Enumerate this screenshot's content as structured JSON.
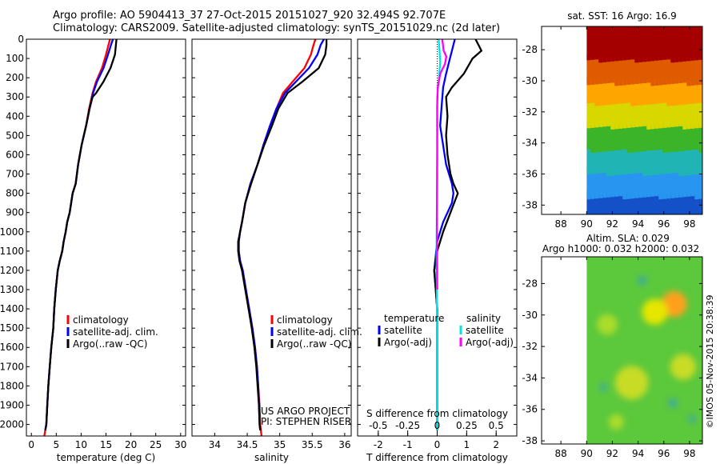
{
  "header": {
    "title_line1": "Argo profile: AO 5904413_37 27-Oct-2015 20151027_920 32.494S 92.707E",
    "title_line2": "Climatology: CARS2009. Satellite-adjusted climatology: synTS_20151029.nc (2d later)"
  },
  "side_label": "©IMOS 05-Nov-2015 20:38:39",
  "colors": {
    "climatology": "#ff0000",
    "satellite": "#0000ff",
    "argo": "#000000",
    "salinity_satellite": "#00e5e5",
    "salinity_argo": "#ff00ff"
  },
  "chart_data": [
    {
      "id": "temperature",
      "type": "line",
      "xlabel": "temperature (deg C)",
      "xlim": [
        -1,
        31
      ],
      "xticks": [
        0,
        5,
        10,
        15,
        20,
        25,
        30
      ],
      "ylim": [
        2060,
        0
      ],
      "yticks": [
        0,
        100,
        200,
        300,
        400,
        500,
        600,
        700,
        800,
        900,
        1000,
        1100,
        1200,
        1300,
        1400,
        1500,
        1600,
        1700,
        1800,
        1900,
        2000
      ],
      "legend": [
        "climatology",
        "satellite-adj. clim.",
        "Argo(..raw -QC)"
      ],
      "series": [
        {
          "name": "climatology",
          "color": "#ff0000",
          "x": [
            15.8,
            15.5,
            15.0,
            14.2,
            13.0,
            12.3,
            11.6,
            11.0,
            10.1,
            9.4,
            8.9,
            8.3,
            7.7,
            7.2,
            6.9,
            6.5,
            6.2,
            5.7,
            5.3,
            4.9,
            4.6,
            4.4,
            4.0,
            3.7,
            3.4,
            3.2,
            3.0,
            2.8,
            2.6
          ],
          "y": [
            0,
            30,
            80,
            150,
            220,
            280,
            360,
            450,
            550,
            650,
            750,
            800,
            900,
            950,
            1000,
            1050,
            1100,
            1150,
            1200,
            1300,
            1400,
            1500,
            1600,
            1700,
            1800,
            1900,
            2000,
            2030,
            2060
          ]
        },
        {
          "name": "satellite-adj. clim.",
          "color": "#0000ff",
          "x": [
            16.4,
            16.0,
            15.4,
            14.5,
            13.2,
            12.4,
            11.7,
            11.0,
            10.1,
            9.4,
            8.9,
            8.3,
            7.7,
            7.2,
            6.9,
            6.5,
            6.2,
            5.7,
            5.3,
            4.9,
            4.6,
            4.4,
            4.0,
            3.7,
            3.4,
            3.2,
            3.0,
            2.8
          ],
          "y": [
            0,
            30,
            80,
            150,
            220,
            280,
            360,
            450,
            550,
            650,
            750,
            800,
            900,
            950,
            1000,
            1050,
            1100,
            1150,
            1200,
            1300,
            1400,
            1500,
            1600,
            1700,
            1800,
            1900,
            2000,
            2030
          ]
        },
        {
          "name": "Argo(..raw -QC)",
          "color": "#000000",
          "x": [
            17.1,
            17.0,
            16.8,
            15.9,
            14.5,
            13.0,
            12.3,
            11.7,
            11.0,
            10.1,
            9.4,
            8.9,
            8.3,
            7.7,
            7.2,
            6.9,
            6.5,
            6.2,
            5.7,
            5.3,
            4.9,
            4.6,
            4.4,
            4.0,
            3.7,
            3.4,
            3.2,
            3.0,
            2.8
          ],
          "y": [
            0,
            30,
            80,
            150,
            220,
            280,
            300,
            360,
            450,
            550,
            650,
            750,
            800,
            900,
            950,
            1000,
            1050,
            1100,
            1150,
            1200,
            1300,
            1400,
            1500,
            1600,
            1700,
            1800,
            1900,
            2000,
            2030
          ]
        }
      ]
    },
    {
      "id": "salinity",
      "type": "line",
      "xlabel": "salinity",
      "xlim": [
        33.65,
        36.1
      ],
      "xticks": [
        34,
        34.5,
        35,
        35.5,
        36
      ],
      "ylim": [
        2060,
        0
      ],
      "legend": [
        "climatology",
        "satellite-adj. clim.",
        "Argo(..raw -QC)"
      ],
      "annotation_lines": [
        "US ARGO PROJECT",
        "PI: STEPHEN RISER"
      ],
      "series": [
        {
          "name": "climatology",
          "color": "#ff0000",
          "x": [
            35.55,
            35.52,
            35.48,
            35.38,
            35.2,
            35.05,
            34.95,
            34.85,
            34.75,
            34.66,
            34.55,
            34.47,
            34.42,
            34.39,
            34.37,
            34.37,
            34.39,
            34.43,
            34.48,
            34.53,
            34.58,
            34.62,
            34.65,
            34.67,
            34.69,
            34.7,
            34.71,
            34.72
          ],
          "y": [
            0,
            30,
            80,
            150,
            220,
            280,
            360,
            450,
            550,
            650,
            750,
            850,
            950,
            1000,
            1050,
            1100,
            1150,
            1200,
            1300,
            1400,
            1500,
            1600,
            1700,
            1800,
            1900,
            2000,
            2030,
            2060
          ]
        },
        {
          "name": "satellite-adj. clim.",
          "color": "#0000ff",
          "x": [
            35.68,
            35.63,
            35.58,
            35.45,
            35.25,
            35.08,
            34.95,
            34.85,
            34.75,
            34.66,
            34.55,
            34.47,
            34.42,
            34.39,
            34.37,
            34.37,
            34.39,
            34.43,
            34.48,
            34.53,
            34.58,
            34.62,
            34.65,
            34.67,
            34.68,
            34.69,
            34.7
          ],
          "y": [
            0,
            30,
            80,
            150,
            220,
            280,
            360,
            450,
            550,
            650,
            750,
            850,
            950,
            1000,
            1050,
            1100,
            1150,
            1200,
            1300,
            1400,
            1500,
            1600,
            1700,
            1800,
            1900,
            2000,
            2030
          ]
        },
        {
          "name": "Argo(..raw -QC)",
          "color": "#000000",
          "x": [
            35.72,
            35.72,
            35.7,
            35.6,
            35.35,
            35.12,
            34.98,
            34.88,
            34.76,
            34.66,
            34.56,
            34.47,
            34.42,
            34.39,
            34.36,
            34.36,
            34.38,
            34.42,
            34.47,
            34.52,
            34.57,
            34.61,
            34.64,
            34.66,
            34.68,
            34.69,
            34.7
          ],
          "y": [
            0,
            30,
            80,
            150,
            220,
            280,
            360,
            450,
            550,
            650,
            750,
            850,
            950,
            1000,
            1050,
            1100,
            1150,
            1200,
            1300,
            1400,
            1500,
            1600,
            1700,
            1800,
            1900,
            2000,
            2030
          ]
        }
      ]
    },
    {
      "id": "difference",
      "type": "line",
      "xlabel": "T difference from climatology",
      "top_axis_label": "S difference from climatology",
      "xlim": [
        -2.7,
        2.7
      ],
      "xticks": [
        -2,
        -1,
        0,
        1,
        2
      ],
      "top_ticks": [
        -0.5,
        -0.25,
        0,
        0.25,
        0.5
      ],
      "top_tick_labels": [
        "-0.5",
        "-0.25",
        "0",
        "0.25",
        "0.5"
      ],
      "ylim": [
        2060,
        0
      ],
      "legend_headers": [
        "temperature",
        "salinity"
      ],
      "legend": [
        "satellite",
        "Argo(-adj)",
        "satellite",
        "Argo(-adj)"
      ],
      "series": [
        {
          "name": "temperature satellite",
          "color": "#0000ff",
          "x": [
            0.6,
            0.5,
            0.4,
            0.3,
            0.2,
            0.15,
            0.1,
            0.2,
            0.3,
            0.5,
            0.55,
            0.5,
            0.2,
            0.0,
            -0.1,
            -0.05,
            0.0,
            0.0,
            0.0,
            0.0,
            0.0,
            0.0,
            0.0,
            0.0
          ],
          "y": [
            0,
            60,
            120,
            180,
            250,
            350,
            450,
            550,
            650,
            750,
            800,
            850,
            950,
            1050,
            1200,
            1300,
            1400,
            1500,
            1600,
            1700,
            1800,
            1900,
            2000,
            2030
          ]
        },
        {
          "name": "temperature Argo(-adj)",
          "color": "#000000",
          "x": [
            1.3,
            1.5,
            1.2,
            0.9,
            0.5,
            0.3,
            0.35,
            0.3,
            0.35,
            0.45,
            0.55,
            0.7,
            0.45,
            0.2,
            0.0,
            -0.1,
            -0.05,
            0.0,
            0.0,
            0.0,
            0.0,
            0.0,
            0.0,
            0.0,
            0.0
          ],
          "y": [
            0,
            60,
            100,
            180,
            250,
            300,
            400,
            500,
            600,
            700,
            750,
            800,
            900,
            1000,
            1100,
            1200,
            1300,
            1400,
            1500,
            1600,
            1700,
            1800,
            1900,
            2000,
            2030
          ]
        },
        {
          "name": "salinity satellite",
          "color": "#00e5e5",
          "x": [
            0.05,
            0.08,
            0.1,
            0.06,
            0.0,
            0.0,
            0.0,
            -0.01,
            -0.01,
            -0.02,
            -0.02,
            -0.01,
            0.0,
            0.0,
            0.0,
            0.0,
            0.0,
            0.0
          ],
          "y": [
            0,
            60,
            120,
            200,
            300,
            450,
            600,
            750,
            900,
            1050,
            1200,
            1350,
            1500,
            1650,
            1800,
            1950,
            2000,
            2030
          ]
        },
        {
          "name": "salinity Argo(-adj)",
          "color": "#ff00ff",
          "x": [
            0.17,
            0.22,
            0.31,
            0.26,
            0.1,
            0.02,
            0.0,
            0.0,
            0.0,
            -0.01,
            -0.01,
            0.0,
            0.0
          ],
          "y": [
            0,
            60,
            90,
            130,
            180,
            250,
            350,
            500,
            700,
            900,
            1050,
            1200,
            1300
          ]
        }
      ]
    },
    {
      "id": "sst_map",
      "type": "heatmap",
      "title": "sat. SST: 16 Argo: 16.9",
      "xlim": [
        86.5,
        99
      ],
      "ylim": [
        -38.6,
        -26.5
      ],
      "xticks": [
        88,
        90,
        92,
        94,
        96,
        98
      ],
      "yticks": [
        -28,
        -30,
        -32,
        -34,
        -36,
        -38
      ],
      "data_x_range": [
        90,
        99
      ],
      "bands": [
        {
          "from": -26.5,
          "to": -28.5,
          "color": "#a50000"
        },
        {
          "from": -28.5,
          "to": -30,
          "color": "#e05a00"
        },
        {
          "from": -30,
          "to": -31.3,
          "color": "#ffa500"
        },
        {
          "from": -31.3,
          "to": -32.8,
          "color": "#d8d800"
        },
        {
          "from": -32.8,
          "to": -34.3,
          "color": "#3cb428"
        },
        {
          "from": -34.3,
          "to": -35.8,
          "color": "#20b4b4"
        },
        {
          "from": -35.8,
          "to": -37.3,
          "color": "#2896f0"
        },
        {
          "from": -37.3,
          "to": -38.6,
          "color": "#1450c8"
        }
      ]
    },
    {
      "id": "sla_map",
      "type": "heatmap",
      "title_line1": "Altim. SLA: 0.029",
      "title_line2": "Argo h1000: 0.032 h2000: 0.032",
      "xlim": [
        86.5,
        99
      ],
      "ylim": [
        -38.2,
        -26.3
      ],
      "xticks": [
        88,
        90,
        92,
        94,
        96,
        98
      ],
      "yticks": [
        -28,
        -30,
        -32,
        -34,
        -36,
        -38
      ],
      "data_x_range": [
        90,
        99
      ],
      "background": "#5cc83c",
      "blobs": [
        {
          "cx": 96.8,
          "cy": -29.3,
          "r": 1.0,
          "color": "#ffa01e"
        },
        {
          "cx": 95.3,
          "cy": -29.8,
          "r": 1.0,
          "color": "#e6e600"
        },
        {
          "cx": 93.5,
          "cy": -34.3,
          "r": 1.3,
          "color": "#c8dc28"
        },
        {
          "cx": 97.5,
          "cy": -33.3,
          "r": 1.0,
          "color": "#c8dc28"
        },
        {
          "cx": 91.6,
          "cy": -30.6,
          "r": 0.8,
          "color": "#aadc2a"
        },
        {
          "cx": 92.3,
          "cy": -36.8,
          "r": 0.6,
          "color": "#aadc2a"
        },
        {
          "cx": 94.3,
          "cy": -27.8,
          "r": 0.35,
          "color": "#3caaa0"
        },
        {
          "cx": 96.7,
          "cy": -35.6,
          "r": 0.35,
          "color": "#3caaa0"
        },
        {
          "cx": 91.3,
          "cy": -34.6,
          "r": 0.3,
          "color": "#3caaa0"
        },
        {
          "cx": 98.2,
          "cy": -36.6,
          "r": 0.3,
          "color": "#3caaa0"
        }
      ]
    }
  ]
}
